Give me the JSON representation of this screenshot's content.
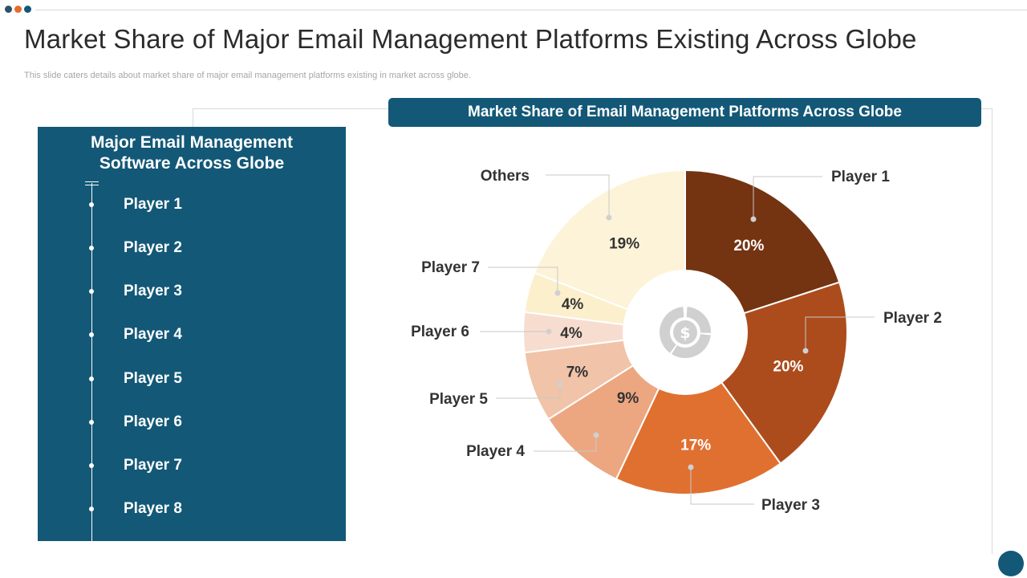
{
  "slide": {
    "title": "Market Share of Major Email Management Platforms Existing Across Globe",
    "subtitle": "This slide caters details about market share of major email management platforms existing in market across globe."
  },
  "left_panel": {
    "heading_line1": "Major Email Management",
    "heading_line2": "Software  Across Globe",
    "players": [
      "Player 1",
      "Player 2",
      "Player 3",
      "Player 4",
      "Player 5",
      "Player 6",
      "Player 7",
      "Player 8"
    ]
  },
  "colors": {
    "navy": "#135877",
    "dot1": "#2f4f6b",
    "dot2": "#e46c2c",
    "dot3": "#135877",
    "slices": [
      "#743311",
      "#ac4c1c",
      "#e07030",
      "#eca781",
      "#f1c3a8",
      "#f7ddd0",
      "#fcefcc",
      "#fdf3d8"
    ],
    "center_icon": "#d0d0d0"
  },
  "center_icon": "dollar-donut-icon",
  "chart_data": {
    "type": "pie",
    "title": "Market Share of Email Management Platforms Across Globe",
    "unit": "%",
    "categories": [
      "Player 1",
      "Player 2",
      "Player 3",
      "Player 4",
      "Player 5",
      "Player 6",
      "Player 7",
      "Others"
    ],
    "values": [
      20,
      20,
      17,
      9,
      7,
      4,
      4,
      19
    ],
    "value_labels": [
      "20%",
      "20%",
      "17%",
      "9%",
      "7%",
      "4%",
      "4%",
      "19%"
    ]
  }
}
